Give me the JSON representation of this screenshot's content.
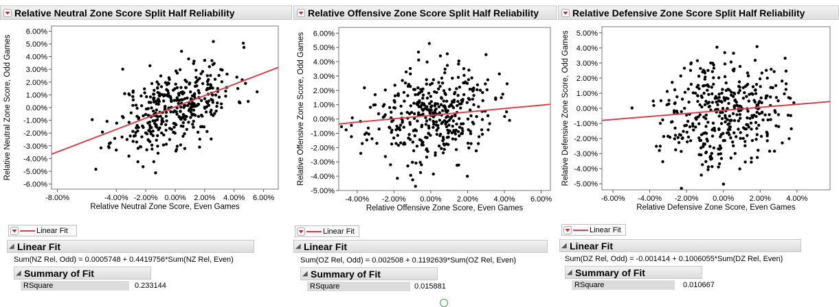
{
  "accent_color": "#d6404c",
  "panels": [
    {
      "title": "Relative Neutral Zone Score Split Half Reliability",
      "xlabel": "Relative Neutral Zone Score, Even Games",
      "ylabel": "Relative Neutral Zone Score, Odd Games",
      "xticks": [
        "-8.00%",
        "-4.00%",
        "-2.00%",
        "0.00%",
        "2.00%",
        "4.00%",
        "6.00%"
      ],
      "yticks": [
        "6.00%",
        "5.00%",
        "4.00%",
        "3.00%",
        "2.00%",
        "1.00%",
        "0.00%",
        "-1.00%",
        "-2.00%",
        "-3.00%",
        "-4.00%",
        "-5.00%",
        "-6.00%"
      ],
      "legend_label": "Linear Fit",
      "fit_header": "Linear Fit",
      "equation": "Sum(NZ Rel, Odd) = 0.0005748 + 0.4419756*Sum(NZ Rel, Even)",
      "summary_header": "Summary of Fit",
      "rsquare_label": "RSquare",
      "rsquare_value": "0.233144"
    },
    {
      "title": "Relative Offensive Zone Score Split Half Reliability",
      "xlabel": "Relative Offensive Zone Score, Even Games",
      "ylabel": "Relative Offensive Zone Score, Odd Games",
      "xticks": [
        "-4.00%",
        "-2.00%",
        "0.00%",
        "2.00%",
        "4.00%",
        "6.00%"
      ],
      "yticks": [
        "6.00%",
        "5.00%",
        "4.00%",
        "3.00%",
        "2.00%",
        "1.00%",
        "0.00%",
        "-1.00%",
        "-2.00%",
        "-3.00%",
        "-4.00%",
        "-5.00%"
      ],
      "legend_label": "Linear Fit",
      "fit_header": "Linear Fit",
      "equation": "Sum(OZ Rel, Odd) = 0.002508 + 0.1192639*Sum(OZ Rel, Even)",
      "summary_header": "Summary of Fit",
      "rsquare_label": "RSquare",
      "rsquare_value": "0.015881"
    },
    {
      "title": "Relative Defensive Zone Score Split Half Reliability",
      "xlabel": "Relative Defensive Zone Score, Even Games",
      "ylabel": "Relative Defensive Zone Score, Odd Games",
      "xticks": [
        "-6.00%",
        "-4.00%",
        "-2.00%",
        "0.00%",
        "2.00%",
        "4.00%"
      ],
      "yticks": [
        "5.00%",
        "4.00%",
        "3.00%",
        "2.00%",
        "1.00%",
        "0.00%",
        "-1.00%",
        "-2.00%",
        "-3.00%",
        "-4.00%",
        "-5.00%"
      ],
      "legend_label": "Linear Fit",
      "fit_header": "Linear Fit",
      "equation": "Sum(DZ Rel, Odd) = -0.001414 + 0.1006055*Sum(DZ Rel, Even)",
      "summary_header": "Summary of Fit",
      "rsquare_label": "RSquare",
      "rsquare_value": "0.010667"
    }
  ],
  "chart_data": [
    {
      "type": "scatter",
      "title": "Relative Neutral Zone Score Split Half Reliability",
      "xlabel": "Relative Neutral Zone Score, Even Games",
      "ylabel": "Relative Neutral Zone Score, Odd Games",
      "xlim": [
        -8.4,
        7.0
      ],
      "ylim": [
        -6.4,
        6.4
      ],
      "xtick_values": [
        -8,
        -4,
        -2,
        0,
        2,
        4,
        6
      ],
      "ytick_values": [
        6,
        5,
        4,
        3,
        2,
        1,
        0,
        -1,
        -2,
        -3,
        -4,
        -5,
        -6
      ],
      "fit": {
        "intercept": 0.05748,
        "slope": 0.4419756
      },
      "n_points": 400,
      "x_sd": 2.0,
      "y_sd": 1.75,
      "correlation": 0.48,
      "seed": 11
    },
    {
      "type": "scatter",
      "title": "Relative Offensive Zone Score Split Half Reliability",
      "xlabel": "Relative Offensive Zone Score, Even Games",
      "ylabel": "Relative Offensive Zone Score, Odd Games",
      "xlim": [
        -5.0,
        6.5
      ],
      "ylim": [
        -5.0,
        6.4
      ],
      "xtick_values": [
        -4,
        -2,
        0,
        2,
        4,
        6
      ],
      "ytick_values": [
        6,
        5,
        4,
        3,
        2,
        1,
        0,
        -1,
        -2,
        -3,
        -4,
        -5
      ],
      "fit": {
        "intercept": 0.2508,
        "slope": 0.1192639
      },
      "n_points": 400,
      "x_sd": 1.7,
      "y_sd": 1.65,
      "correlation": 0.13,
      "seed": 23
    },
    {
      "type": "scatter",
      "title": "Relative Defensive Zone Score Split Half Reliability",
      "xlabel": "Relative Defensive Zone Score, Even Games",
      "ylabel": "Relative Defensive Zone Score, Odd Games",
      "xlim": [
        -6.6,
        5.8
      ],
      "ylim": [
        -5.4,
        5.4
      ],
      "xtick_values": [
        -6,
        -4,
        -2,
        0,
        2,
        4
      ],
      "ytick_values": [
        5,
        4,
        3,
        2,
        1,
        0,
        -1,
        -2,
        -3,
        -4,
        -5
      ],
      "fit": {
        "intercept": -0.1414,
        "slope": 0.1006055
      },
      "n_points": 400,
      "x_sd": 1.6,
      "y_sd": 1.75,
      "correlation": 0.1,
      "seed": 37
    }
  ]
}
